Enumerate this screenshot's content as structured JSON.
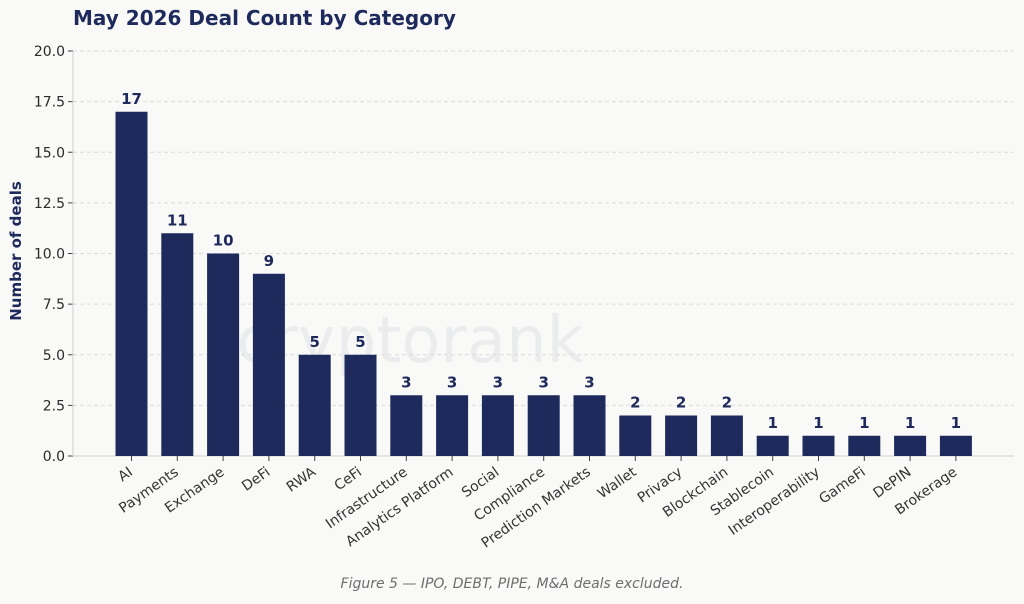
{
  "chart_data": {
    "type": "bar",
    "title": "May 2026 Deal Count by Category",
    "ylabel": "Number of deals",
    "xlabel": "",
    "ylim": [
      0,
      20
    ],
    "yticks": [
      "0.0",
      "2.5",
      "5.0",
      "7.5",
      "10.0",
      "12.5",
      "15.0",
      "17.5",
      "20.0"
    ],
    "grid": true,
    "bar_color": "#1f2a5c",
    "categories": [
      "AI",
      "Payments",
      "Exchange",
      "DeFi",
      "RWA",
      "CeFi",
      "Infrastructure",
      "Analytics Platform",
      "Social",
      "Compliance",
      "Prediction Markets",
      "Wallet",
      "Privacy",
      "Blockchain",
      "Stablecoin",
      "Interoperability",
      "GameFi",
      "DePIN",
      "Brokerage"
    ],
    "values": [
      17,
      11,
      10,
      9,
      5,
      5,
      3,
      3,
      3,
      3,
      3,
      2,
      2,
      2,
      1,
      1,
      1,
      1,
      1
    ]
  },
  "watermark": "cryptorank",
  "caption": "Figure 5 — IPO, DEBT, PIPE, M&A deals excluded."
}
